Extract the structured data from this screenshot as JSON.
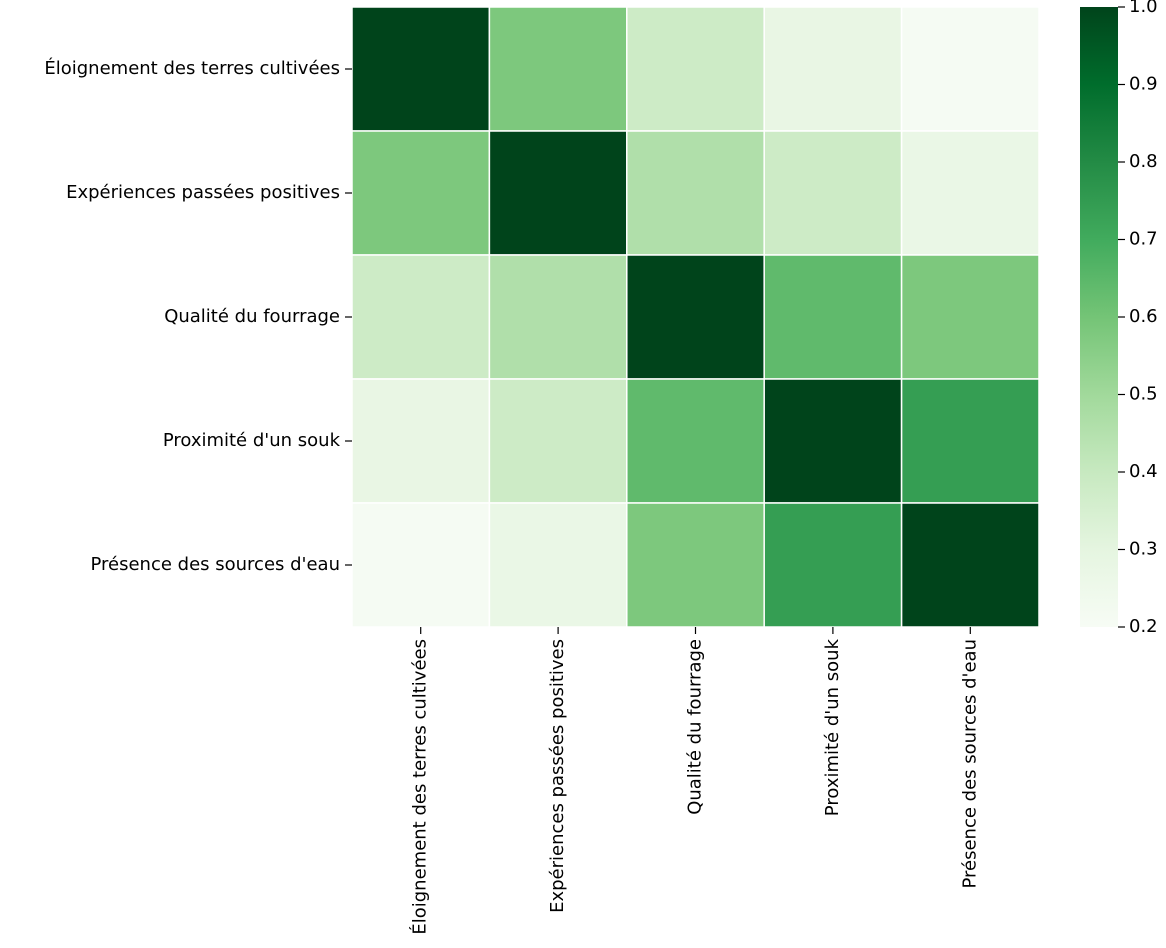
{
  "chart_data": {
    "type": "heatmap",
    "title": "",
    "xlabel": "",
    "ylabel": "",
    "rows": [
      "Éloignement des terres cultivées",
      "Expériences passées positives",
      "Qualité du fourrage",
      "Proximité d'un souk",
      "Présence des sources d'eau"
    ],
    "columns": [
      "Éloignement des terres cultivées",
      "Expériences passées positives",
      "Qualité du fourrage",
      "Proximité d'un souk",
      "Présence des sources d'eau"
    ],
    "values": [
      [
        1.0,
        0.58,
        0.38,
        0.28,
        0.21
      ],
      [
        0.58,
        1.0,
        0.46,
        0.38,
        0.27
      ],
      [
        0.38,
        0.46,
        1.0,
        0.64,
        0.58
      ],
      [
        0.28,
        0.38,
        0.64,
        1.0,
        0.74
      ],
      [
        0.21,
        0.27,
        0.58,
        0.74,
        1.0
      ]
    ],
    "colorbar": {
      "min": 0.2,
      "max": 1.0,
      "ticks": [
        "0.2",
        "0.3",
        "0.4",
        "0.5",
        "0.6",
        "0.7",
        "0.8",
        "0.9",
        "1.0"
      ],
      "colormap": "Greens",
      "colors": [
        "#f7fcf5",
        "#e5f5e0",
        "#c7e9c0",
        "#a1d99b",
        "#74c476",
        "#41ab5d",
        "#238b45",
        "#006d2c",
        "#00441b"
      ]
    },
    "grid": false,
    "legend": "right (colorbar)"
  }
}
